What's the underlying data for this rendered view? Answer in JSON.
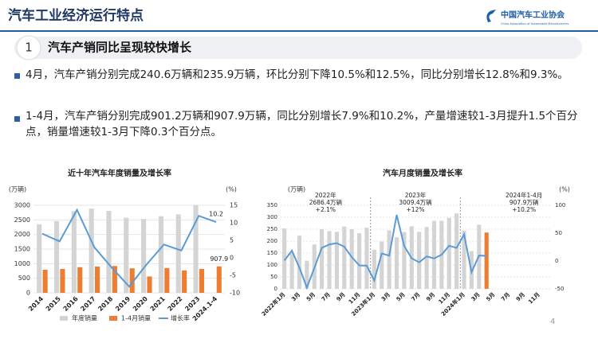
{
  "header": {
    "title": "汽车工业经济运行特点",
    "logo": "中国汽车工业协会",
    "logo_en": "China Association of Automobile Manufacturers"
  },
  "section": {
    "number": "1",
    "title": "汽车产销同比呈现较快增长"
  },
  "bullets": [
    "4月，汽车产销分别完成240.6万辆和235.9万辆，环比分别下降10.5%和12.5%，同比分别增长12.8%和9.3%。",
    "1-4月，汽车产销分别完成901.2万辆和907.9万辆，同比分别增长7.9%和10.2%，产量增速较1-3月提升1.5个百分点，销量增速较1-3月下降0.3个百分点。"
  ],
  "page_number": "4",
  "chart_data": [
    {
      "type": "bar",
      "title": "近十年汽车年度销量及增长率",
      "y_label": "(万辆)",
      "y2_label": "(%)",
      "categories": [
        "2014",
        "2015",
        "2016",
        "2017",
        "2018",
        "2019",
        "2020",
        "2021",
        "2022",
        "2023",
        "2024.1-4"
      ],
      "series": [
        {
          "name": "年度销量",
          "type": "bar",
          "color": "#d4d4d4",
          "values": [
            2349,
            2460,
            2803,
            2888,
            2808,
            2577,
            2531,
            2628,
            2686,
            3009,
            null
          ]
        },
        {
          "name": "1-4月销量",
          "type": "bar",
          "color": "#ed7d31",
          "values": [
            790,
            820,
            880,
            900,
            920,
            840,
            560,
            850,
            770,
            820,
            907.9
          ]
        },
        {
          "name": "增长率",
          "type": "line",
          "axis": "y2",
          "color": "#5b9bd5",
          "values": [
            6.9,
            4.7,
            13.7,
            3.0,
            -2.8,
            -8.2,
            -1.9,
            3.8,
            2.1,
            12.0,
            10.2
          ]
        }
      ],
      "ylim": [
        0,
        3000
      ],
      "yticks": [
        0,
        500,
        1000,
        1500,
        2000,
        2500,
        3000
      ],
      "y2lim": [
        -10,
        15
      ],
      "y2ticks": [
        -10,
        -5,
        0,
        5,
        10,
        15
      ],
      "legend": "bottom"
    },
    {
      "type": "bar",
      "title": "汽车月度销量及增长率",
      "y_label": "(万辆)",
      "y2_label": "(%)",
      "categories": [
        "2022年1月",
        null,
        "3月",
        null,
        "5月",
        null,
        "7月",
        null,
        "9月",
        null,
        "11月",
        null,
        "2023年1月",
        null,
        "3月",
        null,
        "5月",
        null,
        "7月",
        null,
        "9月",
        null,
        "11月",
        null,
        "2024年1月",
        null,
        "3月",
        null,
        "5月",
        null,
        "7月",
        null,
        "9月",
        null,
        "11月",
        null
      ],
      "series": [
        {
          "type": "bar",
          "color": "#d4d4d4",
          "values": [
            253,
            148,
            223,
            118,
            186,
            250,
            242,
            239,
            261,
            250,
            233,
            256,
            164,
            198,
            245,
            216,
            238,
            262,
            239,
            259,
            285,
            285,
            297,
            316,
            244,
            158,
            269,
            null,
            null,
            null,
            null,
            null,
            null,
            null,
            null,
            null
          ]
        },
        {
          "type": "bar",
          "color": "#ed7d31",
          "values": [
            null,
            null,
            null,
            null,
            null,
            null,
            null,
            null,
            null,
            null,
            null,
            null,
            null,
            null,
            null,
            null,
            null,
            null,
            null,
            null,
            null,
            null,
            null,
            null,
            null,
            null,
            null,
            235.9,
            null,
            null,
            null,
            null,
            null,
            null,
            null,
            null
          ]
        },
        {
          "type": "line",
          "axis": "y2",
          "color": "#5b9bd5",
          "values": [
            0.9,
            18.7,
            -11.7,
            -47.6,
            -12.6,
            23.8,
            29.7,
            32.1,
            25.7,
            6.9,
            -7.9,
            -8.4,
            -35,
            13.5,
            9.7,
            82.7,
            26.9,
            4.8,
            -2.3,
            8.2,
            4.7,
            11.4,
            27.4,
            23.5,
            47.9,
            -19.9,
            9.9,
            9.3,
            null,
            null,
            null,
            null,
            null,
            null,
            null,
            null
          ]
        }
      ],
      "annotations": [
        [
          "2022年",
          "2686.4万辆",
          "+2.1%"
        ],
        [
          "2023年",
          "3009.4万辆",
          "+12%"
        ],
        [
          "2024年1-4月",
          "907.9万辆",
          "+10.2%"
        ]
      ],
      "ylim": [
        0,
        350
      ],
      "yticks": [
        0,
        50,
        100,
        150,
        200,
        250,
        300,
        350
      ],
      "y2lim": [
        -50,
        100
      ],
      "y2ticks": [
        -50,
        0,
        50,
        100
      ]
    }
  ]
}
